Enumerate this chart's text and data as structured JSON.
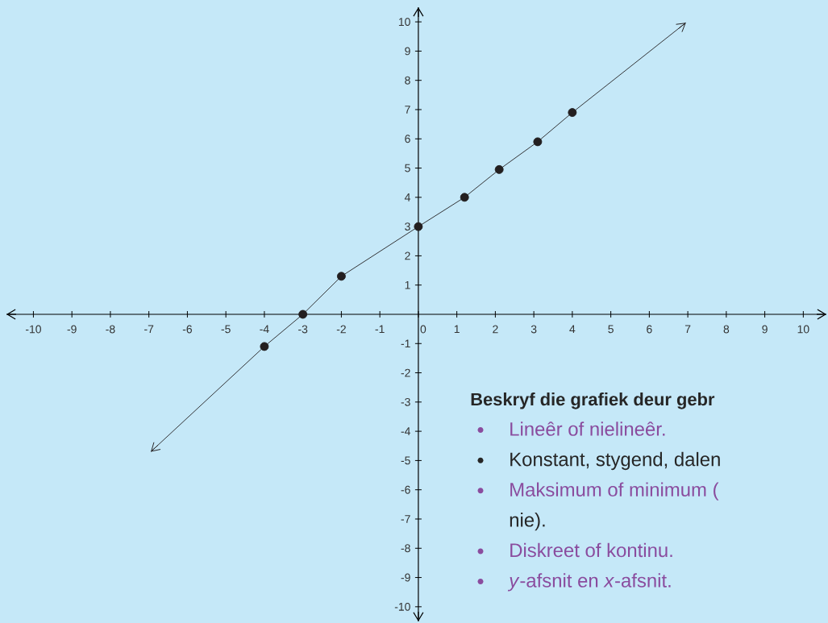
{
  "chart_data": {
    "type": "scatter",
    "series": [
      {
        "color": "#231f20",
        "marker": "circle",
        "x": [
          -4,
          -3,
          -2,
          0,
          1.2,
          2.1,
          3.1,
          4
        ],
        "values": [
          -1.1,
          0,
          1.3,
          3,
          4,
          4.95,
          5.9,
          6.9
        ]
      },
      {
        "type": "line",
        "color": "#231f20",
        "marker": "none",
        "x": [
          -6.95,
          -4,
          -3,
          -2,
          0,
          1.2,
          2.1,
          3.1,
          4,
          6.95
        ],
        "values": [
          -4.7,
          -1.1,
          0,
          1.3,
          3,
          4,
          4.95,
          5.9,
          6.9,
          9.97
        ]
      }
    ],
    "xlim": [
      -10.7,
      10.6
    ],
    "ylim": [
      -10.5,
      10.5
    ],
    "xticks": [
      -10,
      -9,
      -8,
      -7,
      -6,
      -5,
      -4,
      -3,
      -2,
      -1,
      0,
      1,
      2,
      3,
      4,
      5,
      6,
      7,
      8,
      9,
      10
    ],
    "yticks": [
      -10,
      -9,
      -8,
      -7,
      -6,
      -5,
      -4,
      -3,
      -2,
      -1,
      1,
      2,
      3,
      4,
      5,
      6,
      7,
      8,
      9,
      10
    ],
    "annotations": [
      "Beskryf die grafiek deur gebr",
      "Lineêr of nielineêr.",
      "Konstant, stygend, dalen",
      "Maksimum of minimum (",
      "nie).",
      "Diskreet of kontinu.",
      "*y*-afsnit en *x*-afsnit."
    ]
  }
}
